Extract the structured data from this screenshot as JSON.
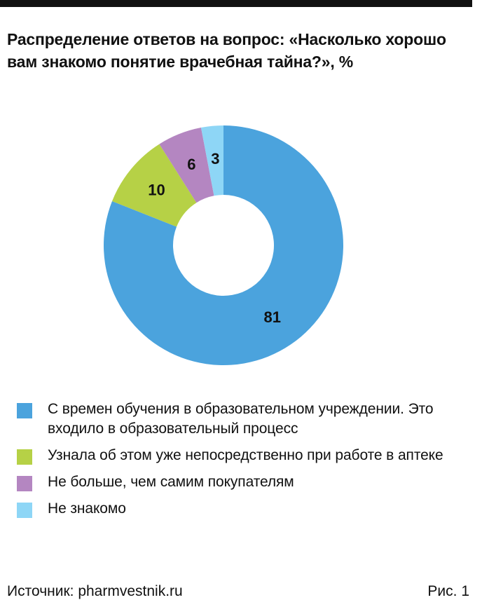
{
  "title": "Распределение ответов на вопрос: «Насколько хорошо вам знакомо понятие врачебная тайна?», %",
  "chart_data": {
    "type": "pie",
    "donut": true,
    "title": "Распределение ответов на вопрос: «Насколько хорошо вам знакомо понятие врачебная тайна?», %",
    "unit": "%",
    "legend_position": "bottom",
    "slices": [
      {
        "label": "С времен обучения в образовательном учреждении. Это входило в образовательный процесс",
        "value": 81,
        "color": "#4ba3dd"
      },
      {
        "label": "Узнала об этом уже непосредственно при работе в аптеке",
        "value": 10,
        "color": "#b6d146"
      },
      {
        "label": "Не больше, чем самим покупателям",
        "value": 6,
        "color": "#b486c1"
      },
      {
        "label": "Не знакомо",
        "value": 3,
        "color": "#8ed6f6"
      }
    ]
  },
  "footer": {
    "source": "Источник: pharmvestnik.ru",
    "figure": "Рис. 1"
  }
}
